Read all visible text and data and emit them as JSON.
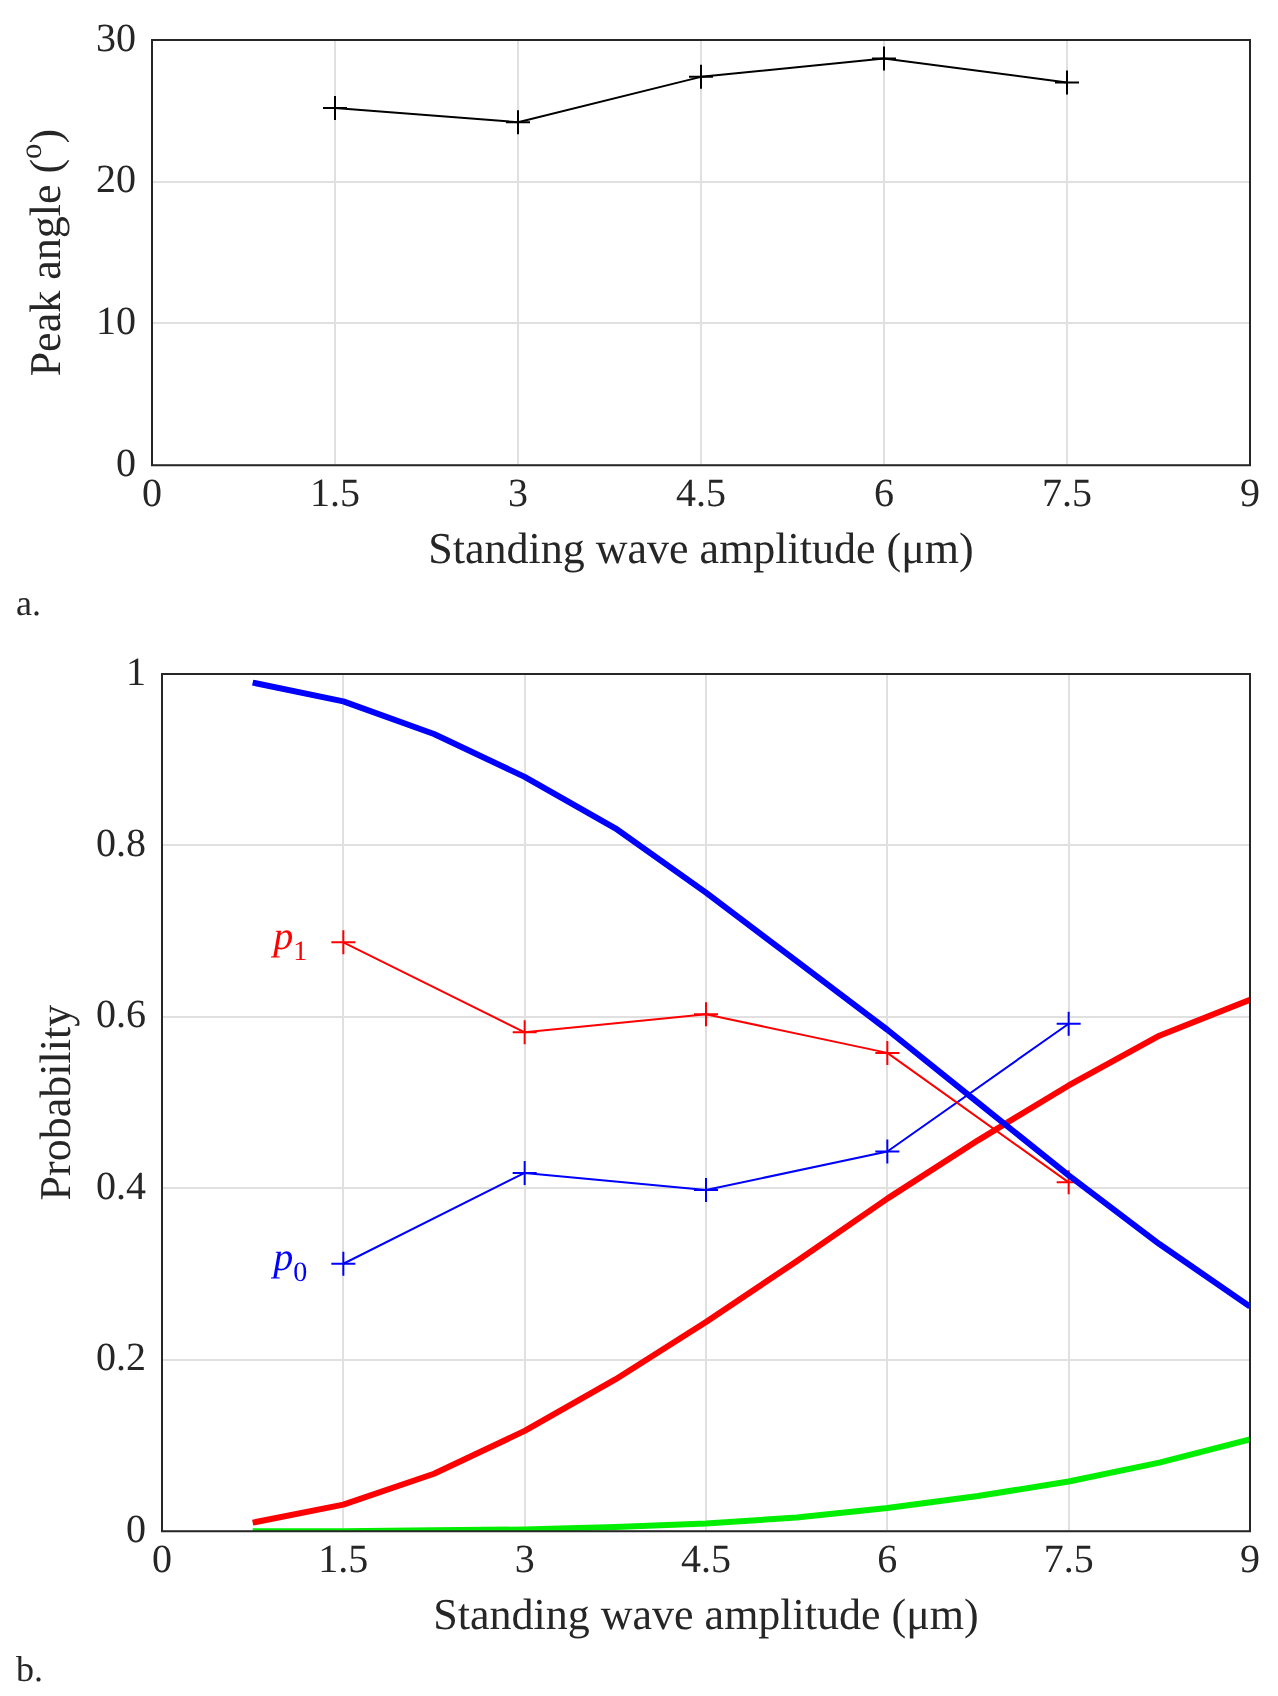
{
  "chart_data": [
    {
      "type": "line",
      "ylabel": "Peak angle ($^{o}$)",
      "xlabel": "Standing wave amplitude (μm)",
      "annotations": [
        "a."
      ],
      "xlim": [
        0,
        9
      ],
      "xticks": [
        0,
        1.5,
        3,
        4.5,
        6,
        7.5,
        9
      ],
      "ylim": [
        0,
        30
      ],
      "yticks": [
        0,
        10,
        20,
        30
      ],
      "grid": true,
      "legend": false,
      "series": [
        {
          "color": "#000000",
          "marker": "cross",
          "x": [
            1.5,
            3,
            4.5,
            6,
            7.5
          ],
          "values": [
            25.2,
            24.2,
            27.4,
            28.7,
            27.0
          ]
        }
      ]
    },
    {
      "type": "line",
      "ylabel": "Probability",
      "xlabel": "Standing wave amplitude (μm)",
      "annotations": [
        "b."
      ],
      "xlim": [
        0,
        9
      ],
      "xticks": [
        0,
        1.5,
        3,
        4.5,
        6,
        7.5,
        9
      ],
      "ylim": [
        0,
        1
      ],
      "yticks": [
        0,
        0.2,
        0.4,
        0.6,
        0.8,
        1
      ],
      "grid": true,
      "legend": false,
      "series": [
        {
          "color": "#0000ff",
          "marker": "none",
          "x": [
            0.75,
            1.5,
            2.25,
            3,
            3.75,
            4.5,
            5.25,
            6,
            6.75,
            7.5,
            8.25,
            9
          ],
          "values": [
            0.99,
            0.968,
            0.93,
            0.88,
            0.82,
            0.745,
            0.665,
            0.585,
            0.5,
            0.415,
            0.335,
            0.262
          ]
        },
        {
          "color": "#ff0000",
          "marker": "none",
          "x": [
            0.75,
            1.5,
            2.25,
            3,
            3.75,
            4.5,
            5.25,
            6,
            6.75,
            7.5,
            8.25,
            9
          ],
          "values": [
            0.01,
            0.031,
            0.067,
            0.117,
            0.177,
            0.244,
            0.315,
            0.388,
            0.456,
            0.52,
            0.578,
            0.62
          ]
        },
        {
          "color": "#00ee00",
          "marker": "none",
          "x": [
            0.75,
            1.5,
            2.25,
            3,
            3.75,
            4.5,
            5.25,
            6,
            6.75,
            7.5,
            8.25,
            9
          ],
          "values": [
            0,
            0,
            0.001,
            0.002,
            0.005,
            0.009,
            0.016,
            0.027,
            0.041,
            0.058,
            0.08,
            0.107
          ]
        },
        {
          "name": "p$_{1}$",
          "color": "#ff0000",
          "marker": "cross",
          "x": [
            1.5,
            3,
            4.5,
            6,
            7.5
          ],
          "values": [
            0.687,
            0.582,
            0.603,
            0.558,
            0.407
          ]
        },
        {
          "name": "p$_{0}$",
          "color": "#0000ff",
          "marker": "cross",
          "x": [
            1.5,
            3,
            4.5,
            6,
            7.5
          ],
          "values": [
            0.312,
            0.418,
            0.398,
            0.443,
            0.592
          ]
        }
      ]
    }
  ]
}
